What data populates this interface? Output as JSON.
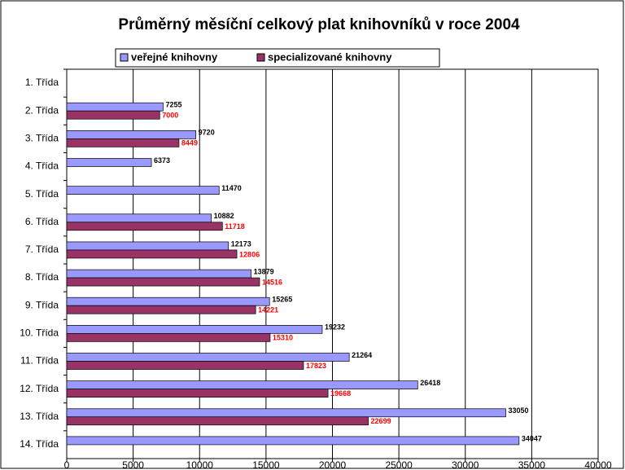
{
  "chart_data": {
    "type": "hbar",
    "title": "Průměrný měsíční celkový plat knihovníků v roce 2004",
    "categories": [
      "1. Třída",
      "2. Třída",
      "3. Třída",
      "4. Třída",
      "5. Třída",
      "6. Třída",
      "7. Třída",
      "8. Třída",
      "9. Třída",
      "10. Třída",
      "11. Třída",
      "12. Třída",
      "13. Třída",
      "14. Třída"
    ],
    "series": [
      {
        "name": "veřejné knihovny",
        "color": "#9999ff",
        "label_color": "#000000",
        "values": [
          null,
          7255,
          9720,
          6373,
          11470,
          10882,
          12173,
          13879,
          15265,
          19232,
          21264,
          26418,
          33050,
          34047
        ]
      },
      {
        "name": "specializované knihovny",
        "color": "#993366",
        "label_color": "#ff0000",
        "values": [
          null,
          7000,
          8449,
          null,
          null,
          11718,
          12806,
          14516,
          14221,
          15310,
          17823,
          19668,
          22699,
          null
        ]
      }
    ],
    "xlim": [
      0,
      40000
    ],
    "xticks": [
      0,
      5000,
      10000,
      15000,
      20000,
      25000,
      30000,
      35000,
      40000
    ],
    "grid": true
  }
}
